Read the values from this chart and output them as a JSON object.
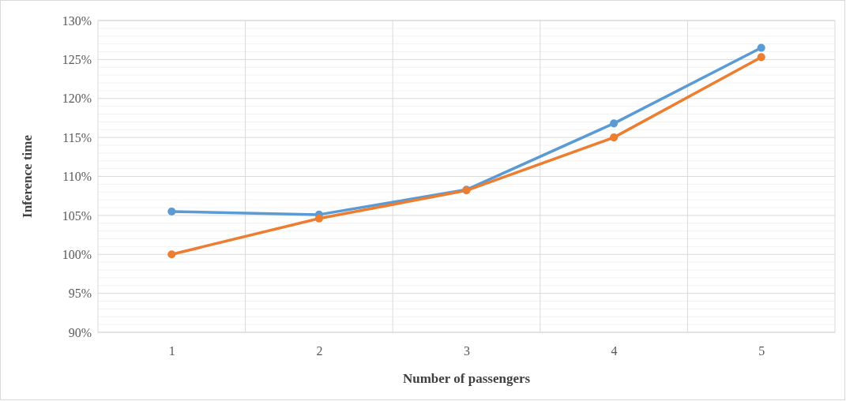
{
  "chart_data": {
    "type": "line",
    "xlabel": "Number of passengers",
    "ylabel": "Inference time",
    "categories": [
      "1",
      "2",
      "3",
      "4",
      "5"
    ],
    "series": [
      {
        "color": "#5b9bd5",
        "values": [
          105.5,
          105.1,
          108.3,
          116.8,
          126.5
        ]
      },
      {
        "color": "#ed7d31",
        "values": [
          100,
          104.6,
          108.2,
          115.0,
          125.3
        ]
      }
    ],
    "ylim": [
      90,
      130
    ],
    "yticks": [
      {
        "value": 90,
        "label": "90%"
      },
      {
        "value": 91,
        "label": null
      },
      {
        "value": 92,
        "label": null
      },
      {
        "value": 93,
        "label": null
      },
      {
        "value": 94,
        "label": null
      },
      {
        "value": 95,
        "label": "95%"
      },
      {
        "value": 96,
        "label": null
      },
      {
        "value": 97,
        "label": null
      },
      {
        "value": 98,
        "label": null
      },
      {
        "value": 99,
        "label": null
      },
      {
        "value": 100,
        "label": "100%"
      },
      {
        "value": 101,
        "label": null
      },
      {
        "value": 102,
        "label": null
      },
      {
        "value": 103,
        "label": null
      },
      {
        "value": 104,
        "label": null
      },
      {
        "value": 105,
        "label": "105%"
      },
      {
        "value": 106,
        "label": null
      },
      {
        "value": 107,
        "label": null
      },
      {
        "value": 108,
        "label": null
      },
      {
        "value": 109,
        "label": null
      },
      {
        "value": 110,
        "label": "110%"
      },
      {
        "value": 111,
        "label": null
      },
      {
        "value": 112,
        "label": null
      },
      {
        "value": 113,
        "label": null
      },
      {
        "value": 114,
        "label": null
      },
      {
        "value": 115,
        "label": "115%"
      },
      {
        "value": 116,
        "label": null
      },
      {
        "value": 117,
        "label": null
      },
      {
        "value": 118,
        "label": null
      },
      {
        "value": 119,
        "label": null
      },
      {
        "value": 120,
        "label": "120%"
      },
      {
        "value": 121,
        "label": null
      },
      {
        "value": 122,
        "label": null
      },
      {
        "value": 123,
        "label": null
      },
      {
        "value": 124,
        "label": null
      },
      {
        "value": 125,
        "label": "125%"
      },
      {
        "value": 126,
        "label": null
      },
      {
        "value": 127,
        "label": null
      },
      {
        "value": 128,
        "label": null
      },
      {
        "value": 129,
        "label": null
      },
      {
        "value": 130,
        "label": "130%"
      }
    ],
    "grid": true,
    "marker": "circle",
    "line_style": "solid"
  }
}
